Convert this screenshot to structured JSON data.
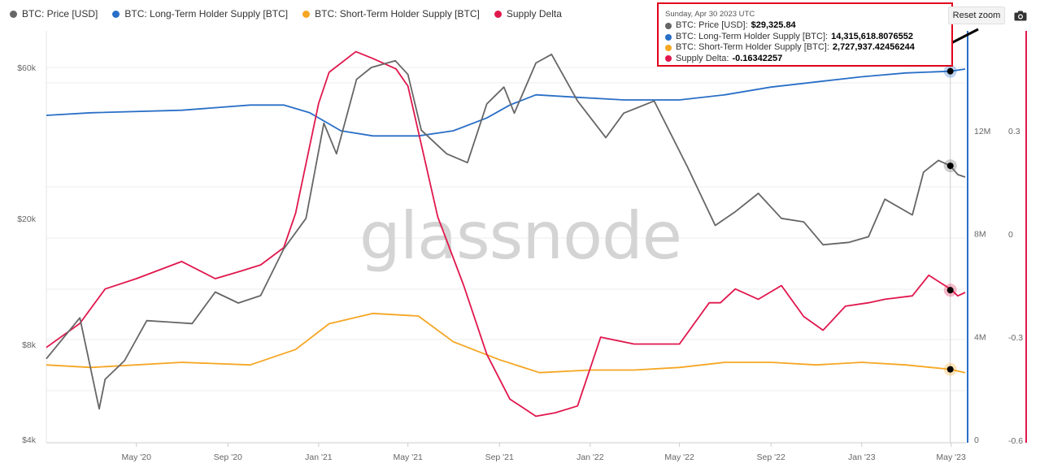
{
  "legend": [
    {
      "label": "BTC: Price [USD]",
      "color": "#666666"
    },
    {
      "label": "BTC: Long-Term Holder Supply [BTC]",
      "color": "#2a6fc7"
    },
    {
      "label": "BTC: Short-Term Holder Supply [BTC]",
      "color": "#f5a623"
    },
    {
      "label": "Supply Delta",
      "color": "#e0174d"
    }
  ],
  "reset_zoom_label": "Reset zoom",
  "camera_icon": "camera-icon",
  "watermark": "glassnode",
  "tooltip": {
    "date": "Sunday, Apr 30 2023 UTC",
    "rows": [
      {
        "label": "BTC: Price [USD]:",
        "value": "$29,325.84",
        "color": "#666666"
      },
      {
        "label": "BTC: Long-Term Holder Supply [BTC]:",
        "value": "14,315,618.8076552",
        "color": "#2a6fc7"
      },
      {
        "label": "BTC: Short-Term Holder Supply [BTC]:",
        "value": "2,727,937.42456244",
        "color": "#f5a623"
      },
      {
        "label": "Supply Delta:",
        "value": "-0.16342257",
        "color": "#e0174d"
      }
    ]
  },
  "chart_data": {
    "type": "line",
    "title": "",
    "x_ticks": [
      "May '20",
      "Sep '20",
      "Jan '21",
      "May '21",
      "Sep '21",
      "Jan '22",
      "May '22",
      "Sep '22",
      "Jan '23",
      "May '23"
    ],
    "axes": {
      "price_log": {
        "labels": [
          "$4k",
          "$8k",
          "$20k",
          "$60k"
        ],
        "values": [
          4000,
          8000,
          20000,
          60000
        ],
        "position": "left",
        "scale": "log"
      },
      "supply": {
        "labels": [
          "0",
          "4M",
          "8M",
          "12M"
        ],
        "values": [
          0,
          4000000,
          8000000,
          12000000
        ],
        "position": "right",
        "color": "#2a6fc7"
      },
      "delta": {
        "labels": [
          "-0.6",
          "-0.3",
          "0",
          "0.3"
        ],
        "values": [
          -0.6,
          -0.3,
          0,
          0.3
        ],
        "position": "right",
        "color": "#e0174d"
      }
    },
    "series": [
      {
        "name": "BTC: Price [USD]",
        "axis": "price_log",
        "color": "#666666",
        "x": [
          "2020-01-01",
          "2020-02-15",
          "2020-03-12",
          "2020-03-20",
          "2020-04-15",
          "2020-05-15",
          "2020-06-15",
          "2020-07-15",
          "2020-08-15",
          "2020-09-15",
          "2020-10-15",
          "2020-11-15",
          "2020-12-15",
          "2021-01-08",
          "2021-01-25",
          "2021-02-21",
          "2021-03-13",
          "2021-04-14",
          "2021-05-01",
          "2021-05-19",
          "2021-06-22",
          "2021-07-20",
          "2021-08-15",
          "2021-09-07",
          "2021-09-21",
          "2021-10-20",
          "2021-11-10",
          "2021-12-15",
          "2022-01-22",
          "2022-02-15",
          "2022-03-28",
          "2022-05-12",
          "2022-06-18",
          "2022-07-15",
          "2022-08-15",
          "2022-09-15",
          "2022-10-15",
          "2022-11-10",
          "2022-12-15",
          "2023-01-10",
          "2023-02-01",
          "2023-03-10",
          "2023-03-25",
          "2023-04-14",
          "2023-04-30",
          "2023-05-10",
          "2023-05-20"
        ],
        "values": [
          7200,
          9700,
          5000,
          6200,
          7100,
          9500,
          9400,
          9300,
          11700,
          10800,
          11400,
          16000,
          20000,
          40000,
          32000,
          55000,
          60000,
          63000,
          57000,
          38000,
          32000,
          30000,
          46000,
          52000,
          43000,
          62000,
          66000,
          47000,
          36000,
          43000,
          47000,
          29000,
          19000,
          21000,
          24000,
          20000,
          19500,
          16500,
          16800,
          17500,
          23000,
          20500,
          28000,
          30500,
          29325,
          27500,
          27000
        ]
      },
      {
        "name": "BTC: Long-Term Holder Supply [BTC]",
        "axis": "supply",
        "color": "#2a6fc7",
        "x": [
          "2020-01-01",
          "2020-03-01",
          "2020-07-01",
          "2020-10-01",
          "2020-11-15",
          "2020-12-20",
          "2021-01-31",
          "2021-03-15",
          "2021-05-15",
          "2021-07-01",
          "2021-08-15",
          "2021-09-15",
          "2021-10-20",
          "2021-12-15",
          "2022-02-15",
          "2022-05-01",
          "2022-07-01",
          "2022-09-01",
          "2022-11-01",
          "2023-01-01",
          "2023-03-01",
          "2023-04-30",
          "2023-05-20"
        ],
        "values": [
          12600000,
          12700000,
          12800000,
          13000000,
          13000000,
          12700000,
          12000000,
          11800000,
          11800000,
          12000000,
          12500000,
          13000000,
          13400000,
          13300000,
          13200000,
          13200000,
          13400000,
          13700000,
          13900000,
          14100000,
          14250000,
          14315618,
          14400000
        ]
      },
      {
        "name": "BTC: Short-Term Holder Supply [BTC]",
        "axis": "supply",
        "color": "#f5a623",
        "x": [
          "2020-01-01",
          "2020-03-01",
          "2020-07-01",
          "2020-10-01",
          "2020-12-01",
          "2021-01-15",
          "2021-03-15",
          "2021-05-15",
          "2021-07-01",
          "2021-09-01",
          "2021-10-25",
          "2022-01-01",
          "2022-03-01",
          "2022-05-01",
          "2022-07-01",
          "2022-09-01",
          "2022-11-01",
          "2023-01-01",
          "2023-03-01",
          "2023-04-30",
          "2023-05-20"
        ],
        "values": [
          2900000,
          2800000,
          3000000,
          2900000,
          3500000,
          4500000,
          4900000,
          4800000,
          3800000,
          3100000,
          2600000,
          2700000,
          2700000,
          2800000,
          3000000,
          3000000,
          2900000,
          3000000,
          2900000,
          2727937,
          2600000
        ]
      },
      {
        "name": "Supply Delta",
        "axis": "delta",
        "color": "#e0174d",
        "x": [
          "2020-01-01",
          "2020-02-15",
          "2020-03-20",
          "2020-05-01",
          "2020-07-01",
          "2020-08-15",
          "2020-09-15",
          "2020-10-15",
          "2020-11-15",
          "2020-12-01",
          "2021-01-01",
          "2021-01-15",
          "2021-02-20",
          "2021-03-15",
          "2021-04-15",
          "2021-05-01",
          "2021-05-20",
          "2021-06-10",
          "2021-07-15",
          "2021-08-15",
          "2021-09-15",
          "2021-10-20",
          "2021-11-15",
          "2021-12-15",
          "2022-01-15",
          "2022-03-01",
          "2022-05-01",
          "2022-06-10",
          "2022-06-25",
          "2022-07-15",
          "2022-08-15",
          "2022-09-15",
          "2022-10-15",
          "2022-11-10",
          "2022-12-10",
          "2023-01-10",
          "2023-02-01",
          "2023-03-10",
          "2023-04-01",
          "2023-04-30",
          "2023-05-10",
          "2023-05-20"
        ],
        "values": [
          -0.33,
          -0.26,
          -0.16,
          -0.13,
          -0.08,
          -0.13,
          -0.11,
          -0.09,
          -0.04,
          0.06,
          0.38,
          0.47,
          0.53,
          0.51,
          0.48,
          0.43,
          0.25,
          0.05,
          -0.15,
          -0.35,
          -0.48,
          -0.53,
          -0.52,
          -0.5,
          -0.3,
          -0.32,
          -0.32,
          -0.2,
          -0.2,
          -0.16,
          -0.19,
          -0.15,
          -0.24,
          -0.28,
          -0.21,
          -0.2,
          -0.19,
          -0.18,
          -0.12,
          -0.16,
          -0.18,
          -0.17
        ]
      }
    ],
    "markers": [
      {
        "series": 0,
        "x": "2023-04-30",
        "value": 29325.84
      },
      {
        "series": 1,
        "x": "2023-04-30",
        "value": 14315618.8076552
      },
      {
        "series": 2,
        "x": "2023-04-30",
        "value": 2727937.42456244
      },
      {
        "series": 3,
        "x": "2023-04-30",
        "value": -0.16342257
      }
    ],
    "crosshair_x": "2023-04-30",
    "grid": true,
    "legend_position": "top-left"
  }
}
